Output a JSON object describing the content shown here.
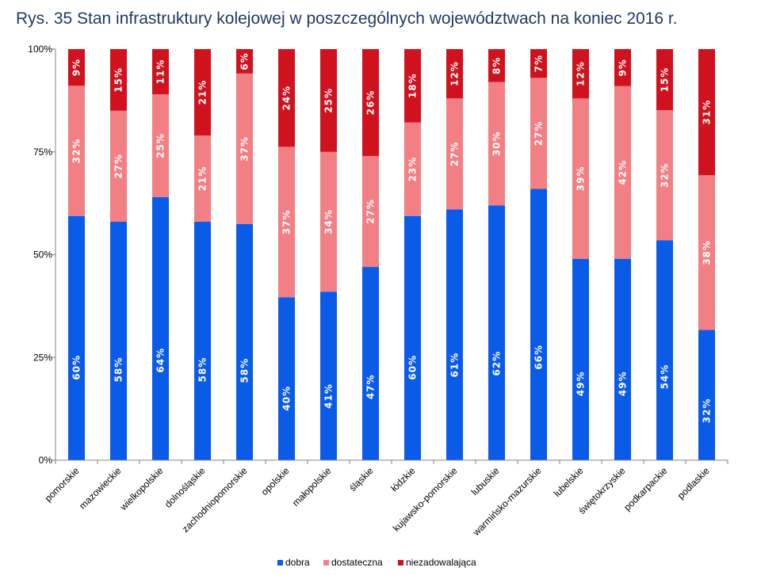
{
  "chart_title": "Rys. 35 Stan infrastruktury kolejowej w poszczególnych województwach na koniec 2016 r.",
  "chart_data": {
    "type": "bar",
    "stacked": true,
    "percent": true,
    "title": "Rys. 35 Stan infrastruktury kolejowej w poszczególnych województwach na koniec 2016 r.",
    "xlabel": "",
    "ylabel": "",
    "ylim": [
      0,
      100
    ],
    "y_ticks": [
      "0%",
      "25%",
      "50%",
      "75%",
      "100%"
    ],
    "y_tick_values": [
      0,
      25,
      50,
      75,
      100
    ],
    "grid": false,
    "legend_position": "bottom",
    "categories": [
      "pomorskie",
      "mazowieckie",
      "wielkopolskie",
      "dolnośląskie",
      "zachodniopomorskie",
      "opolskie",
      "małopolskie",
      "śląskie",
      "łódzkie",
      "kujawsko-pomorskie",
      "lubuskie",
      "warmińsko-mazurskie",
      "lubelskie",
      "świętokrzyskie",
      "podkarpackie",
      "podlaskie"
    ],
    "series": [
      {
        "name": "dobra",
        "color": "#0a5ce8",
        "values": [
          60,
          58,
          64,
          58,
          58,
          40,
          41,
          47,
          60,
          61,
          62,
          66,
          49,
          49,
          54,
          32
        ]
      },
      {
        "name": "dostateczna",
        "color": "#f27f84",
        "values": [
          32,
          27,
          25,
          21,
          37,
          37,
          34,
          27,
          23,
          27,
          30,
          27,
          39,
          42,
          32,
          38
        ]
      },
      {
        "name": "niezadowalająca",
        "color": "#d0121f",
        "values": [
          9,
          15,
          11,
          21,
          6,
          24,
          25,
          26,
          18,
          12,
          8,
          7,
          12,
          9,
          15,
          31
        ]
      }
    ],
    "data_labels": [
      [
        "60%",
        "58%",
        "64%",
        "58%",
        "58%",
        "40%",
        "41%",
        "47%",
        "60%",
        "61%",
        "62%",
        "66%",
        "49%",
        "49%",
        "54%",
        "32%"
      ],
      [
        "32%",
        "27%",
        "25%",
        "21%",
        "37%",
        "37%",
        "34%",
        "27%",
        "23%",
        "27%",
        "30%",
        "27%",
        "39%",
        "42%",
        "32%",
        "38%"
      ],
      [
        "9%",
        "15%",
        "11%",
        "21%",
        "6%",
        "24%",
        "25%",
        "26%",
        "18%",
        "12%",
        "8%",
        "7%",
        "12%",
        "9%",
        "15%",
        "31%"
      ]
    ]
  }
}
